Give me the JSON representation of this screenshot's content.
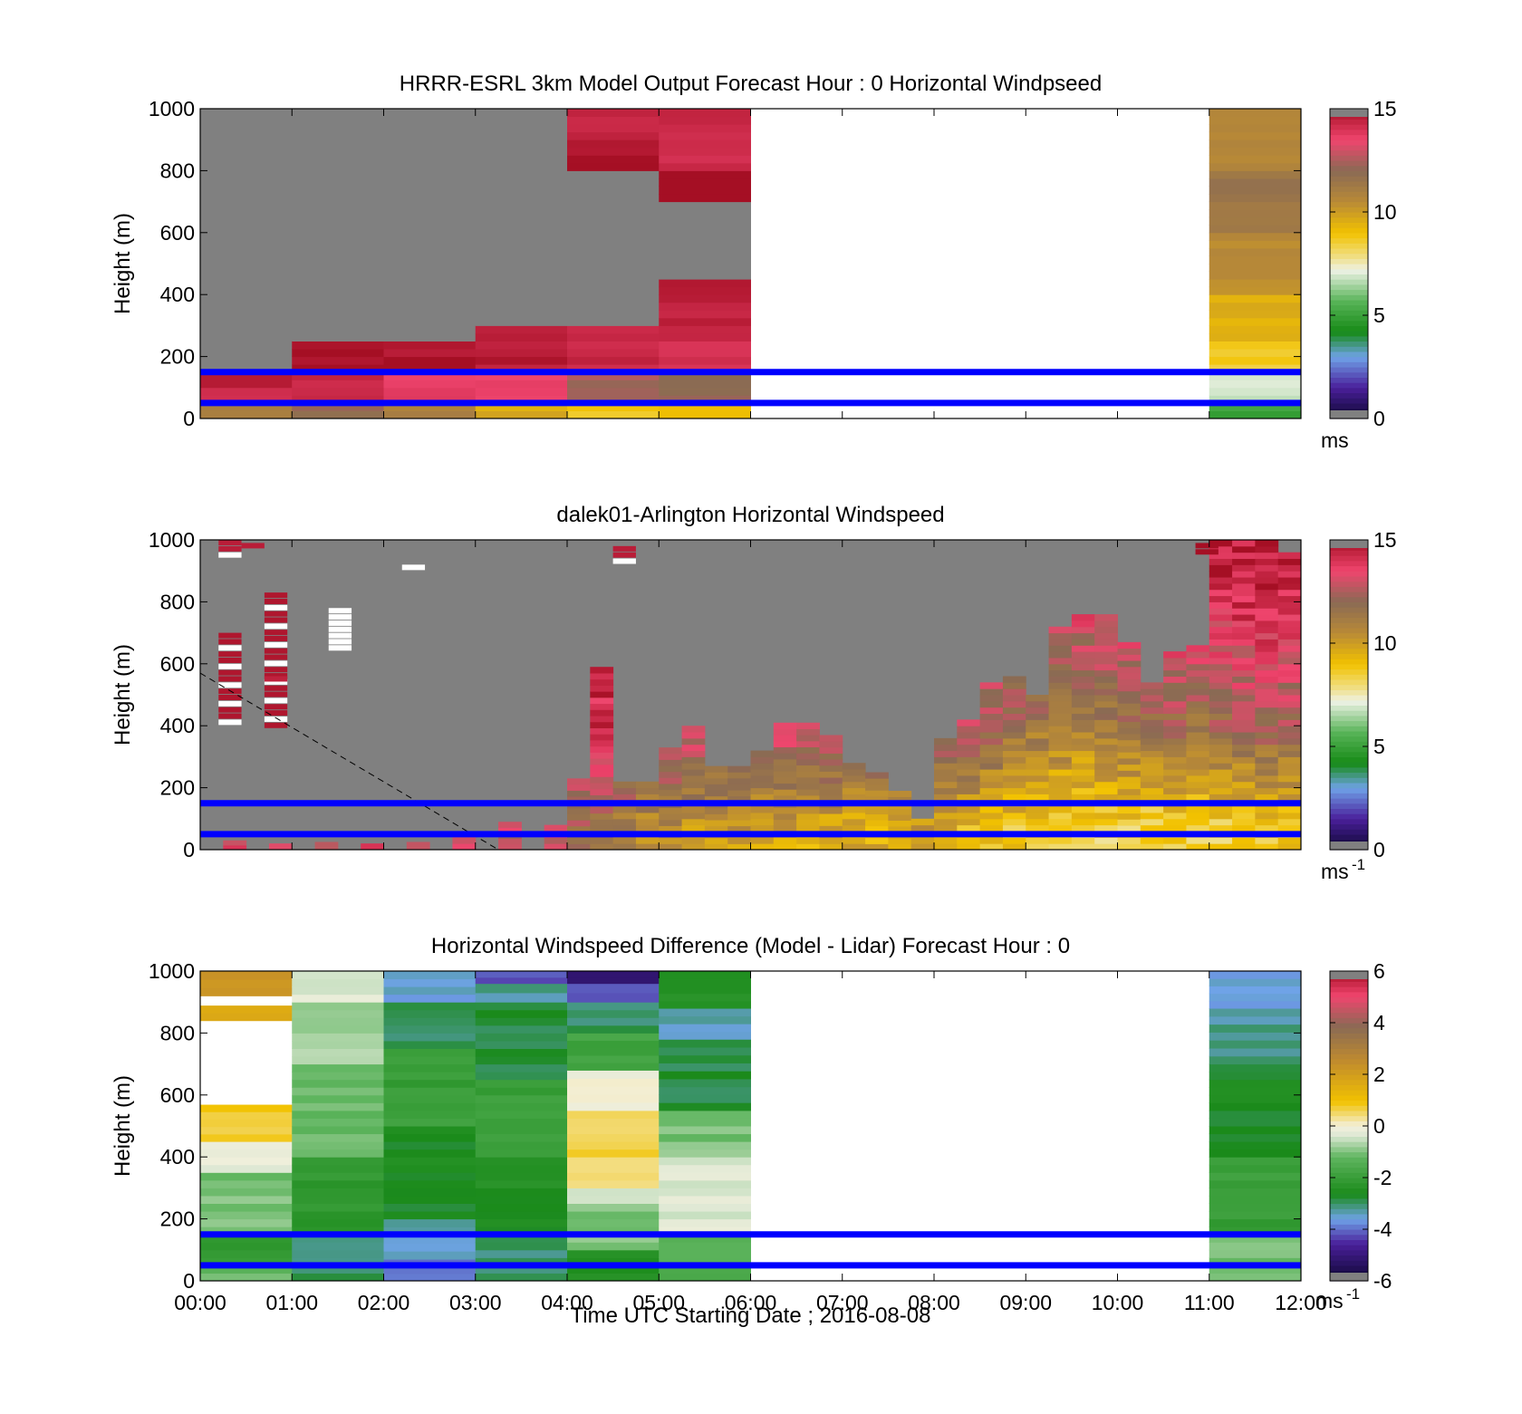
{
  "figure": {
    "xlabel": "Time UTC  Starting Date ; 2016-08-08",
    "time_ticks": [
      "00:00",
      "01:00",
      "02:00",
      "03:00",
      "04:00",
      "05:00",
      "06:00",
      "07:00",
      "08:00",
      "09:00",
      "10:00",
      "11:00",
      "12:00"
    ]
  },
  "chart_data": [
    {
      "type": "heatmap",
      "title": "HRRR-ESRL 3km Model Output   Forecast Hour : 0 Horizontal Windpseed",
      "ylabel": "Height (m)",
      "x_range": [
        "00:00",
        "12:00"
      ],
      "ylim": [
        0,
        1000
      ],
      "y_ticks": [
        "0",
        "200",
        "400",
        "600",
        "800",
        "1000"
      ],
      "colorbar": {
        "min": 0,
        "max": 15,
        "ticks": [
          "0",
          "5",
          "10",
          "15"
        ],
        "unit_label": "ms"
      },
      "reference_lines_m": [
        50,
        150
      ],
      "no_data_hours": [
        "06:00-11:00"
      ],
      "columns": [
        {
          "hour_start": 0,
          "hour_end": 1,
          "layers": [
            {
              "h0": 0,
              "h1": 50,
              "v": 11
            },
            {
              "h0": 50,
              "h1": 100,
              "v": 14.3
            },
            {
              "h0": 100,
              "h1": 150,
              "v": 14.7
            },
            {
              "h0": 150,
              "h1": 1000,
              "v": 0
            }
          ]
        },
        {
          "hour_start": 1,
          "hour_end": 2,
          "layers": [
            {
              "h0": 0,
              "h1": 50,
              "v": 12
            },
            {
              "h0": 50,
              "h1": 150,
              "v": 14.3
            },
            {
              "h0": 150,
              "h1": 250,
              "v": 15
            },
            {
              "h0": 250,
              "h1": 1000,
              "v": 0
            }
          ]
        },
        {
          "hour_start": 2,
          "hour_end": 3,
          "layers": [
            {
              "h0": 0,
              "h1": 50,
              "v": 11
            },
            {
              "h0": 50,
              "h1": 150,
              "v": 13.8
            },
            {
              "h0": 150,
              "h1": 250,
              "v": 14.8
            },
            {
              "h0": 250,
              "h1": 1000,
              "v": 0
            }
          ]
        },
        {
          "hour_start": 3,
          "hour_end": 4,
          "layers": [
            {
              "h0": 0,
              "h1": 50,
              "v": 9.6
            },
            {
              "h0": 50,
              "h1": 150,
              "v": 13.6
            },
            {
              "h0": 150,
              "h1": 300,
              "v": 14.6
            },
            {
              "h0": 300,
              "h1": 1000,
              "v": 0
            }
          ]
        },
        {
          "hour_start": 4,
          "hour_end": 5,
          "layers": [
            {
              "h0": 0,
              "h1": 50,
              "v": 8.8
            },
            {
              "h0": 50,
              "h1": 150,
              "v": 12.4
            },
            {
              "h0": 150,
              "h1": 300,
              "v": 14.3
            },
            {
              "h0": 300,
              "h1": 800,
              "v": 0
            },
            {
              "h0": 800,
              "h1": 900,
              "v": 14.9
            },
            {
              "h0": 900,
              "h1": 1000,
              "v": 14.5
            }
          ]
        },
        {
          "hour_start": 5,
          "hour_end": 6,
          "layers": [
            {
              "h0": 0,
              "h1": 50,
              "v": 9
            },
            {
              "h0": 50,
              "h1": 150,
              "v": 12
            },
            {
              "h0": 150,
              "h1": 250,
              "v": 14
            },
            {
              "h0": 250,
              "h1": 450,
              "v": 14.5
            },
            {
              "h0": 450,
              "h1": 700,
              "v": 0
            },
            {
              "h0": 700,
              "h1": 800,
              "v": 15
            },
            {
              "h0": 800,
              "h1": 1000,
              "v": 14.3
            }
          ]
        },
        {
          "hour_start": 11,
          "hour_end": 12,
          "layers": [
            {
              "h0": 0,
              "h1": 50,
              "v": 5
            },
            {
              "h0": 50,
              "h1": 150,
              "v": 7
            },
            {
              "h0": 150,
              "h1": 250,
              "v": 8.6
            },
            {
              "h0": 250,
              "h1": 400,
              "v": 9.5
            },
            {
              "h0": 400,
              "h1": 600,
              "v": 10.5
            },
            {
              "h0": 600,
              "h1": 800,
              "v": 11.5
            },
            {
              "h0": 800,
              "h1": 1000,
              "v": 10.8
            }
          ]
        }
      ]
    },
    {
      "type": "heatmap",
      "title": "dalek01-Arlington  Horizontal Windspeed",
      "ylabel": "Height (m)",
      "x_range": [
        "00:00",
        "12:00"
      ],
      "ylim": [
        0,
        1000
      ],
      "y_ticks": [
        "0",
        "200",
        "400",
        "600",
        "800",
        "1000"
      ],
      "colorbar": {
        "min": 0,
        "max": 15,
        "ticks": [
          "0",
          "5",
          "10",
          "15"
        ],
        "unit_label": "ms",
        "unit_exponent": "-1"
      },
      "reference_lines_m": [
        50,
        150
      ],
      "annotation": "dashed line from (00:00, 570 m) to (03:15, 0 m)",
      "columns": [
        {
          "t": 0.25,
          "top": 30,
          "low": 13.5,
          "mid": 13.5,
          "high": 14.5
        },
        {
          "t": 0.75,
          "top": 20,
          "low": 13.8,
          "mid": 13.8,
          "high": 14.5
        },
        {
          "t": 1.25,
          "top": 25,
          "low": 13.5,
          "mid": 13.5,
          "high": 14.5
        },
        {
          "t": 1.75,
          "top": 20,
          "low": 13.8,
          "mid": 13.8,
          "high": 14.5
        },
        {
          "t": 2.25,
          "top": 25,
          "low": 13.5,
          "mid": 13.5,
          "high": 14.5
        },
        {
          "t": 2.75,
          "top": 40,
          "low": 13.6,
          "mid": 14,
          "high": 14.6
        },
        {
          "t": 3.25,
          "top": 90,
          "low": 13,
          "mid": 14.2,
          "high": 14.6
        },
        {
          "t": 3.75,
          "top": 80,
          "low": 12.8,
          "mid": 14,
          "high": 14.6
        },
        {
          "t": 4.0,
          "top": 230,
          "low": 12,
          "mid": 14.2,
          "high": 14.8
        },
        {
          "t": 4.25,
          "top": 590,
          "low": 11.5,
          "mid": 14,
          "high": 14.8
        },
        {
          "t": 4.5,
          "top": 220,
          "low": 11,
          "mid": 13.5,
          "high": 14.6
        },
        {
          "t": 4.75,
          "top": 220,
          "low": 10.5,
          "mid": 13.5,
          "high": 14.6
        },
        {
          "t": 5.0,
          "top": 330,
          "low": 10.5,
          "mid": 13.8,
          "high": 14.5
        },
        {
          "t": 5.25,
          "top": 400,
          "low": 10.2,
          "mid": 13.5,
          "high": 14.4
        },
        {
          "t": 5.5,
          "top": 270,
          "low": 10,
          "mid": 13.2,
          "high": 14.4
        },
        {
          "t": 5.75,
          "top": 270,
          "low": 10,
          "mid": 13.2,
          "high": 14.4
        },
        {
          "t": 6.0,
          "top": 320,
          "low": 9.8,
          "mid": 13,
          "high": 14.6
        },
        {
          "t": 6.25,
          "top": 410,
          "low": 9.8,
          "mid": 13.3,
          "high": 14.8
        },
        {
          "t": 6.5,
          "top": 410,
          "low": 9.6,
          "mid": 13.5,
          "high": 14.8
        },
        {
          "t": 6.75,
          "top": 370,
          "low": 9.6,
          "mid": 13.6,
          "high": 14.7
        },
        {
          "t": 7.0,
          "top": 280,
          "low": 9.5,
          "mid": 13.2,
          "high": 14.5
        },
        {
          "t": 7.25,
          "top": 250,
          "low": 9.5,
          "mid": 13.5,
          "high": 14.6
        },
        {
          "t": 7.5,
          "top": 190,
          "low": 9.4,
          "mid": 13.5,
          "high": 14.6
        },
        {
          "t": 7.75,
          "top": 100,
          "low": 10,
          "mid": 13,
          "high": 14.4
        },
        {
          "t": 8.0,
          "top": 360,
          "low": 9.6,
          "mid": 13.2,
          "high": 14.6
        },
        {
          "t": 8.25,
          "top": 420,
          "low": 9.2,
          "mid": 12.8,
          "high": 14.5
        },
        {
          "t": 8.5,
          "top": 540,
          "low": 9,
          "mid": 12.3,
          "high": 14.4
        },
        {
          "t": 8.75,
          "top": 560,
          "low": 8.8,
          "mid": 11.8,
          "high": 14.3
        },
        {
          "t": 9.0,
          "top": 500,
          "low": 8.5,
          "mid": 11.4,
          "high": 14.2
        },
        {
          "t": 9.25,
          "top": 720,
          "low": 8.3,
          "mid": 11.2,
          "high": 14.2
        },
        {
          "t": 9.5,
          "top": 760,
          "low": 8.3,
          "mid": 11,
          "high": 14.1
        },
        {
          "t": 9.75,
          "top": 760,
          "low": 8.4,
          "mid": 11.4,
          "high": 14.3
        },
        {
          "t": 10.0,
          "top": 670,
          "low": 8.5,
          "mid": 11.6,
          "high": 14.3
        },
        {
          "t": 10.25,
          "top": 540,
          "low": 8.2,
          "mid": 11.8,
          "high": 14.4
        },
        {
          "t": 10.5,
          "top": 640,
          "low": 8.6,
          "mid": 12,
          "high": 14.5
        },
        {
          "t": 10.75,
          "top": 660,
          "low": 8.5,
          "mid": 11.6,
          "high": 14.4
        },
        {
          "t": 11.0,
          "top": 1000,
          "low": 8.4,
          "mid": 12,
          "high": 14.5
        },
        {
          "t": 11.25,
          "top": 1000,
          "low": 8.5,
          "mid": 12.2,
          "high": 14.6
        },
        {
          "t": 11.5,
          "top": 1000,
          "low": 8.6,
          "mid": 12.4,
          "high": 14.7
        },
        {
          "t": 11.75,
          "top": 960,
          "low": 8.8,
          "mid": 12.2,
          "high": 14.5
        }
      ]
    },
    {
      "type": "heatmap",
      "title": "Horizontal Windspeed Difference (Model - Lidar) Forecast Hour : 0",
      "ylabel": "Height (m)",
      "x_range": [
        "00:00",
        "12:00"
      ],
      "ylim": [
        0,
        1000
      ],
      "y_ticks": [
        "0",
        "200",
        "400",
        "600",
        "800",
        "1000"
      ],
      "colorbar": {
        "min": -6,
        "max": 6,
        "ticks": [
          "-6",
          "-4",
          "-2",
          "0",
          "2",
          "4",
          "6"
        ],
        "unit_label": "ms",
        "unit_exponent": "-1"
      },
      "reference_lines_m": [
        50,
        150
      ],
      "no_data_hours": [
        "06:00-11:00"
      ],
      "columns": [
        {
          "hour_start": 0,
          "hour_end": 1,
          "layers": [
            {
              "h0": 0,
              "h1": 50,
              "v": -1.2
            },
            {
              "h0": 50,
              "h1": 150,
              "v": -2.2
            },
            {
              "h0": 150,
              "h1": 350,
              "v": -1
            },
            {
              "h0": 350,
              "h1": 450,
              "v": -0.2
            },
            {
              "h0": 450,
              "h1": 570,
              "v": 0.8
            },
            {
              "h0": 570,
              "h1": 840,
              "v": null
            },
            {
              "h0": 840,
              "h1": 890,
              "v": 1.8
            },
            {
              "h0": 890,
              "h1": 920,
              "v": null
            },
            {
              "h0": 920,
              "h1": 1000,
              "v": 2.3
            }
          ]
        },
        {
          "hour_start": 1,
          "hour_end": 2,
          "layers": [
            {
              "h0": 0,
              "h1": 150,
              "v": -3
            },
            {
              "h0": 150,
              "h1": 400,
              "v": -2.2
            },
            {
              "h0": 400,
              "h1": 700,
              "v": -1.2
            },
            {
              "h0": 700,
              "h1": 900,
              "v": -0.7
            },
            {
              "h0": 900,
              "h1": 1000,
              "v": -0.3
            }
          ]
        },
        {
          "hour_start": 2,
          "hour_end": 3,
          "layers": [
            {
              "h0": 0,
              "h1": 70,
              "v": -4
            },
            {
              "h0": 70,
              "h1": 200,
              "v": -3.4
            },
            {
              "h0": 200,
              "h1": 500,
              "v": -2.6
            },
            {
              "h0": 500,
              "h1": 750,
              "v": -2
            },
            {
              "h0": 750,
              "h1": 900,
              "v": -3
            },
            {
              "h0": 900,
              "h1": 1000,
              "v": -3.5
            }
          ]
        },
        {
          "hour_start": 3,
          "hour_end": 4,
          "layers": [
            {
              "h0": 0,
              "h1": 150,
              "v": -3
            },
            {
              "h0": 150,
              "h1": 400,
              "v": -2.5
            },
            {
              "h0": 400,
              "h1": 650,
              "v": -2
            },
            {
              "h0": 650,
              "h1": 900,
              "v": -2.8
            },
            {
              "h0": 900,
              "h1": 960,
              "v": -3.2
            },
            {
              "h0": 960,
              "h1": 1000,
              "v": -4.2
            }
          ]
        },
        {
          "hour_start": 4,
          "hour_end": 5,
          "layers": [
            {
              "h0": 0,
              "h1": 100,
              "v": -2.4
            },
            {
              "h0": 100,
              "h1": 250,
              "v": -1
            },
            {
              "h0": 250,
              "h1": 300,
              "v": -0.4
            },
            {
              "h0": 300,
              "h1": 550,
              "v": 0.6
            },
            {
              "h0": 550,
              "h1": 680,
              "v": 0
            },
            {
              "h0": 680,
              "h1": 800,
              "v": -1.8
            },
            {
              "h0": 800,
              "h1": 900,
              "v": -3
            },
            {
              "h0": 900,
              "h1": 960,
              "v": -4
            },
            {
              "h0": 960,
              "h1": 1000,
              "v": -5
            }
          ]
        },
        {
          "hour_start": 5,
          "hour_end": 6,
          "layers": [
            {
              "h0": 0,
              "h1": 150,
              "v": -1.5
            },
            {
              "h0": 150,
              "h1": 400,
              "v": -0.3
            },
            {
              "h0": 400,
              "h1": 550,
              "v": -1
            },
            {
              "h0": 550,
              "h1": 780,
              "v": -2.8
            },
            {
              "h0": 780,
              "h1": 880,
              "v": -3.4
            },
            {
              "h0": 880,
              "h1": 1000,
              "v": -2.4
            }
          ]
        },
        {
          "hour_start": 11,
          "hour_end": 12,
          "layers": [
            {
              "h0": 0,
              "h1": 150,
              "v": -1
            },
            {
              "h0": 150,
              "h1": 400,
              "v": -2
            },
            {
              "h0": 400,
              "h1": 700,
              "v": -2.6
            },
            {
              "h0": 700,
              "h1": 880,
              "v": -3.2
            },
            {
              "h0": 880,
              "h1": 1000,
              "v": -3.6
            }
          ]
        }
      ]
    }
  ]
}
